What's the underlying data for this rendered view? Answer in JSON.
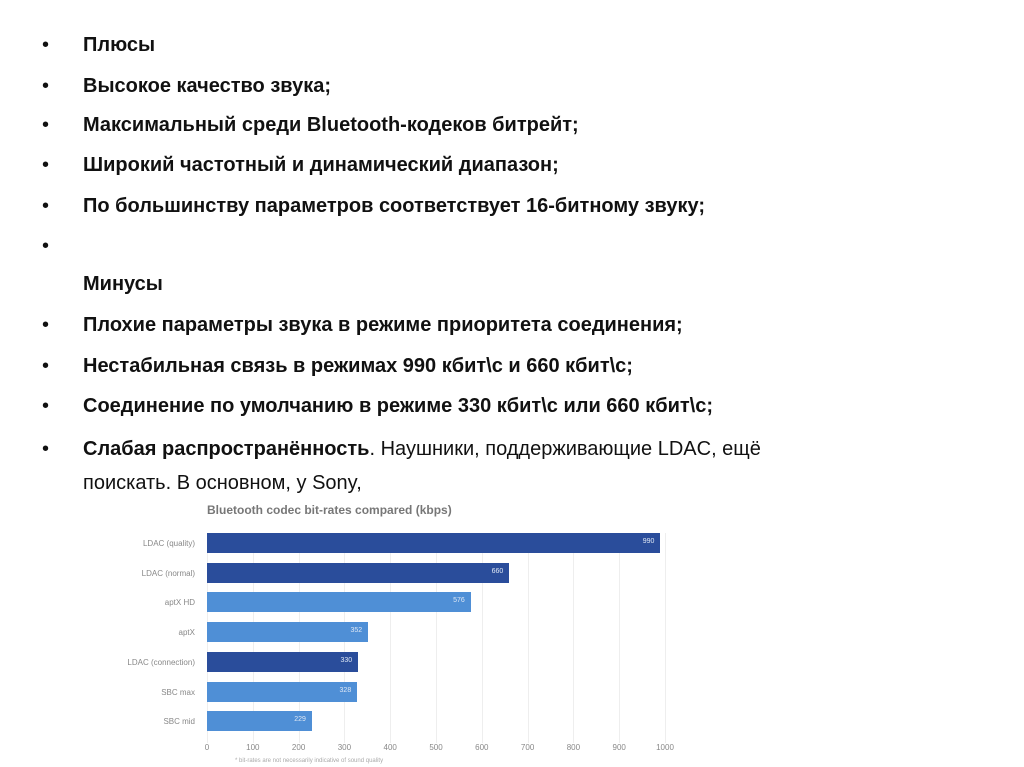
{
  "bullets": [
    {
      "bold": "Плюсы",
      "rest": "",
      "bullet": true
    },
    {
      "bold": " Высокое качество звука;",
      "rest": "",
      "bullet": true
    },
    {
      "bold": " Максимальный среди Bluetooth-кодеков битрейт;",
      "rest": "",
      "bullet": true
    },
    {
      "bold": " Широкий частотный и динамический диапазон;",
      "rest": "",
      "bullet": true
    },
    {
      "bold": " По большинству параметров соответствует 16-битному звуку;",
      "rest": "",
      "bullet": true
    },
    {
      "bold": "",
      "rest": "",
      "bullet": true
    },
    {
      "bold": "Минусы",
      "rest": "",
      "bullet": false
    },
    {
      "bold": " Плохие параметры звука в режиме приоритета соединения;",
      "rest": "",
      "bullet": true
    },
    {
      "bold": " Нестабильная связь в режимах 990 кбит\\с и 660 кбит\\с;",
      "rest": "",
      "bullet": true
    },
    {
      "bold": " Соединение по умолчанию в режиме 330 кбит\\с или 660 кбит\\с;",
      "rest": "",
      "bullet": true
    },
    {
      "bold": " Слабая распространённость",
      "rest": ". Наушники, поддерживающие LDAC, ещё",
      "bullet": true
    },
    {
      "bold": "",
      "rest": "поискать. В основном, у Sony,",
      "bullet": false
    }
  ],
  "bullet_char": "•",
  "chart_data": {
    "type": "bar",
    "orientation": "horizontal",
    "title": "Bluetooth codec bit-rates compared (kbps)",
    "categories": [
      "LDAC (quality)",
      "LDAC (normal)",
      "aptX HD",
      "aptX",
      "LDAC (connection)",
      "SBC max",
      "SBC mid"
    ],
    "values": [
      990,
      660,
      576,
      352,
      330,
      328,
      229
    ],
    "colors": [
      "#2a4d9b",
      "#2a4d9b",
      "#4f8fd6",
      "#4f8fd6",
      "#2a4d9b",
      "#4f8fd6",
      "#4f8fd6"
    ],
    "xlim": [
      0,
      1000
    ],
    "xticks": [
      0,
      100,
      200,
      300,
      400,
      500,
      600,
      700,
      800,
      900,
      1000
    ],
    "grid": true,
    "footnote": "* bit-rates are not necessarily indicative of sound quality"
  }
}
